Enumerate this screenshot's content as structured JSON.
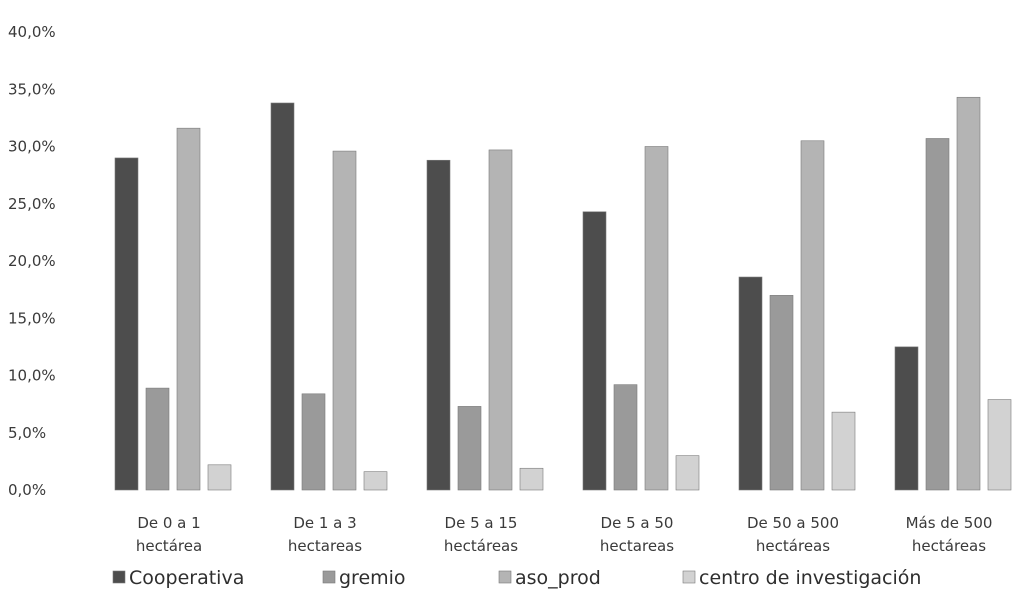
{
  "chart_data": {
    "type": "bar",
    "title": "",
    "xlabel": "",
    "ylabel": "",
    "ylim": [
      0,
      40
    ],
    "y_ticks": [
      "0,0%",
      "5,0%",
      "10,0%",
      "15,0%",
      "20,0%",
      "25,0%",
      "30,0%",
      "35,0%",
      "40,0%"
    ],
    "y_tick_values": [
      0,
      5,
      10,
      15,
      20,
      25,
      30,
      35,
      40
    ],
    "grid": false,
    "legend_position": "bottom",
    "categories": [
      [
        "De 0 a 1",
        "hectárea"
      ],
      [
        "De 1 a 3",
        "hectareas"
      ],
      [
        "De 5 a 15",
        "hectáreas"
      ],
      [
        "De 5 a 50",
        "hectareas"
      ],
      [
        "De 50 a 500",
        "hectáreas"
      ],
      [
        "Más de 500",
        "hectáreas"
      ]
    ],
    "series": [
      {
        "name": "Cooperativa",
        "color": "#4d4d4d",
        "values": [
          29.0,
          33.8,
          28.8,
          24.3,
          18.6,
          12.5
        ]
      },
      {
        "name": "gremio",
        "color": "#9a9a9a",
        "values": [
          8.9,
          8.4,
          7.3,
          9.2,
          17.0,
          30.7
        ]
      },
      {
        "name": "aso_prod",
        "color": "#b4b4b4",
        "values": [
          31.6,
          29.6,
          29.7,
          30.0,
          30.5,
          34.3
        ]
      },
      {
        "name": "centro de investigación",
        "color": "#d2d2d2",
        "values": [
          2.2,
          1.6,
          1.9,
          3.0,
          6.8,
          7.9
        ]
      }
    ]
  }
}
